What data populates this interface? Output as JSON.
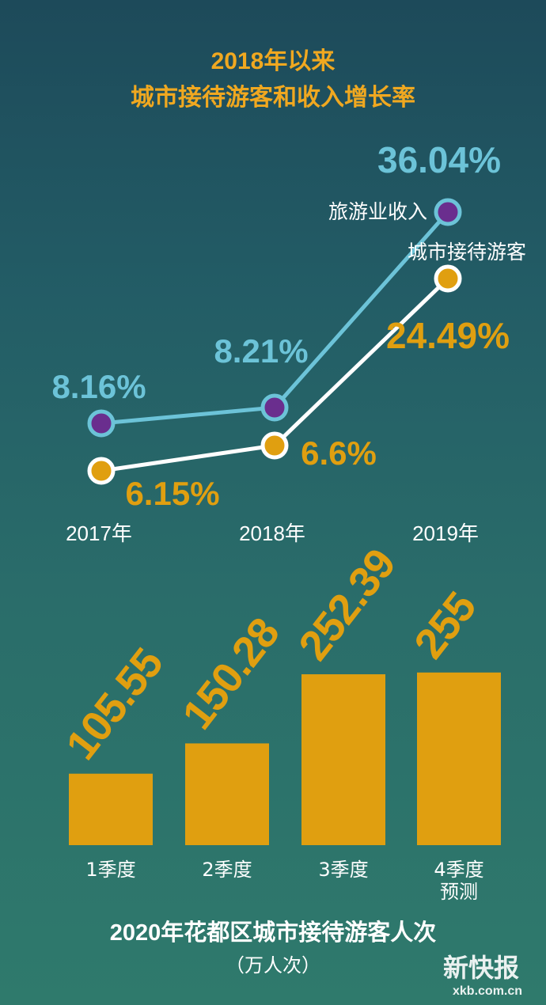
{
  "line_chart": {
    "title_line1": "2018年以来",
    "title_line2": "城市接待游客和收入增长率"
  },
  "bar_chart": {
    "title": "2020年花都区城市接待游客人次",
    "subtitle": "（万人次）"
  },
  "watermark": {
    "brand": "新快报",
    "url": "xkb.com.cn"
  },
  "colors": {
    "accent_orange": "#e09f10",
    "accent_blue": "#6cc3d8",
    "dot_purple": "#6a2e8e",
    "line_white": "#ffffff"
  },
  "chart_data": [
    {
      "type": "line",
      "title": "2018年以来 城市接待游客和收入增长率",
      "categories": [
        "2017年",
        "2018年",
        "2019年"
      ],
      "series": [
        {
          "name": "旅游业收入",
          "values": [
            8.16,
            8.21,
            36.04
          ],
          "labels": [
            "8.16%",
            "8.21%",
            "36.04%"
          ],
          "color": "#6cc3d8",
          "dot": "#6a2e8e"
        },
        {
          "name": "城市接待游客",
          "values": [
            6.15,
            6.6,
            24.49
          ],
          "labels": [
            "6.15%",
            "6.6%",
            "24.49%"
          ],
          "color": "#ffffff",
          "dot": "#e09f10"
        }
      ],
      "unit": "%",
      "grid": false
    },
    {
      "type": "bar",
      "title": "2020年花都区城市接待游客人次",
      "unit": "（万人次）",
      "categories": [
        "1季度",
        "2季度",
        "3季度",
        "4季度预测"
      ],
      "category_lines": [
        [
          "1季度"
        ],
        [
          "2季度"
        ],
        [
          "3季度"
        ],
        [
          "4季度",
          "预测"
        ]
      ],
      "values": [
        105.55,
        150.28,
        252.39,
        255
      ],
      "labels": [
        "105.55",
        "150.28",
        "252.39",
        "255"
      ],
      "color": "#e09f10",
      "ylim": [
        0,
        270
      ],
      "grid": false
    }
  ]
}
